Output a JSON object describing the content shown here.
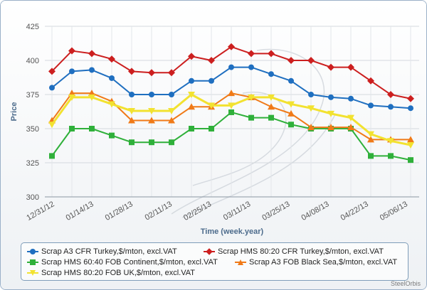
{
  "chart_data": {
    "type": "line",
    "title": "",
    "xlabel": "Time (week.year)",
    "ylabel": "Price",
    "ylim": [
      300,
      425
    ],
    "yticks": [
      300,
      325,
      350,
      375,
      400,
      425
    ],
    "x_tick_labels": [
      "12/31/12",
      "01/14/13",
      "01/28/13",
      "02/11/13",
      "02/25/13",
      "03/11/13",
      "03/25/13",
      "04/08/13",
      "04/22/13",
      "05/06/13"
    ],
    "grid": true,
    "legend_position": "bottom",
    "series": [
      {
        "name": "Scrap A3 CFR Turkey,$/mton, excl.VAT",
        "color": "#1f6fc0",
        "marker": "circle",
        "values": [
          380,
          392,
          393,
          387,
          375,
          375,
          375,
          385,
          385,
          395,
          395,
          390,
          385,
          375,
          373,
          372,
          367,
          366,
          365
        ]
      },
      {
        "name": "Scrap HMS 80:20 CFR Turkey,$/mton, excl.VAT",
        "color": "#cc1f1f",
        "marker": "diamond",
        "values": [
          392,
          407,
          405,
          401,
          392,
          391,
          391,
          403,
          400,
          410,
          405,
          405,
          400,
          400,
          395,
          395,
          385,
          375,
          372
        ]
      },
      {
        "name": "Scrap HMS 60:40 FOB Continent,$/mton, excl.VAT",
        "color": "#2fb03a",
        "marker": "square",
        "values": [
          330,
          350,
          350,
          345,
          340,
          340,
          340,
          350,
          350,
          362,
          358,
          358,
          353,
          350,
          350,
          350,
          330,
          330,
          327
        ]
      },
      {
        "name": "Scrap A3 FOB Black Sea,$/mton, excl.VAT",
        "color": "#f07a18",
        "marker": "triangle",
        "values": [
          356,
          376,
          376,
          370,
          356,
          356,
          356,
          366,
          366,
          376,
          373,
          366,
          361,
          351,
          351,
          351,
          342,
          342,
          342
        ]
      },
      {
        "name": "Scrap HMS 80:20 FOB UK,$/mton, excl.VAT",
        "color": "#f2e230",
        "marker": "triangle-down",
        "values": [
          353,
          373,
          373,
          368,
          363,
          363,
          363,
          375,
          367,
          367,
          373,
          373,
          368,
          365,
          361,
          358,
          346,
          341,
          338
        ]
      }
    ]
  },
  "credit": "SteelOrbis"
}
